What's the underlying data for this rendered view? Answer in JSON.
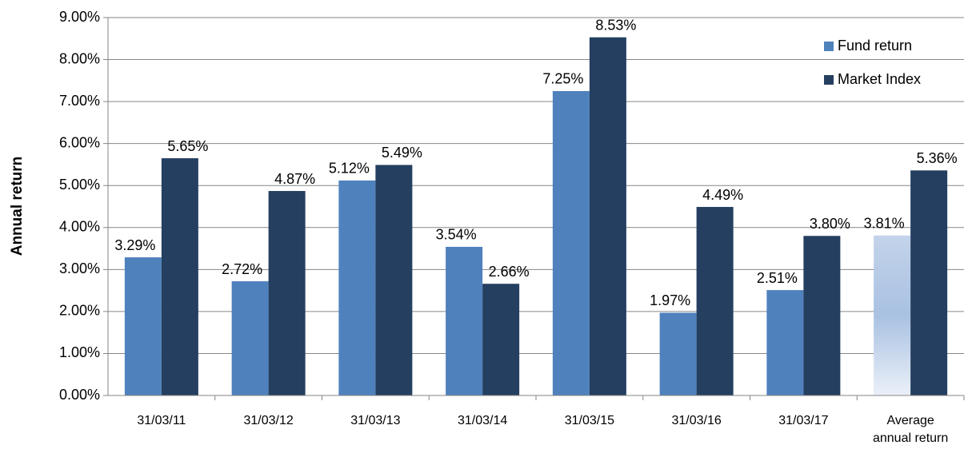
{
  "chart_data": {
    "type": "bar",
    "y_label": "Annual return",
    "categories": [
      "31/03/11",
      "31/03/12",
      "31/03/13",
      "31/03/14",
      "31/03/15",
      "31/03/16",
      "31/03/17",
      "Average annual return"
    ],
    "series": [
      {
        "name": "Fund return",
        "color": "#4f81bd",
        "values": [
          3.29,
          2.72,
          5.12,
          3.54,
          7.25,
          1.97,
          2.51,
          3.81
        ],
        "value_labels": [
          "3.29%",
          "2.72%",
          "5.12%",
          "3.54%",
          "7.25%",
          "1.97%",
          "2.51%",
          "3.81%"
        ]
      },
      {
        "name": "Market Index",
        "color": "#243f60",
        "values": [
          5.65,
          4.87,
          5.49,
          2.66,
          8.53,
          4.49,
          3.8,
          5.36
        ],
        "value_labels": [
          "5.65%",
          "4.87%",
          "5.49%",
          "2.66%",
          "8.53%",
          "4.49%",
          "3.80%",
          "5.36%"
        ]
      }
    ],
    "ylim": [
      0,
      9
    ],
    "yticks": [
      {
        "value": 0,
        "label": "0.00%"
      },
      {
        "value": 1,
        "label": "1.00%"
      },
      {
        "value": 2,
        "label": "2.00%"
      },
      {
        "value": 3,
        "label": "3.00%"
      },
      {
        "value": 4,
        "label": "4.00%"
      },
      {
        "value": 5,
        "label": "5.00%"
      },
      {
        "value": 6,
        "label": "6.00%"
      },
      {
        "value": 7,
        "label": "7.00%"
      },
      {
        "value": 8,
        "label": "8.00%"
      },
      {
        "value": 9,
        "label": "9.00%"
      }
    ],
    "grid": true,
    "legend": "top-right"
  }
}
